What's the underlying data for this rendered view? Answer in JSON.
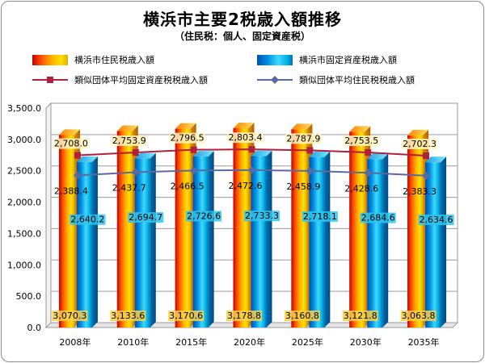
{
  "title": "横浜市主要2税歳入額推移",
  "subtitle": "（住民税：個人、固定資産税）",
  "colors": {
    "bar_resident": "#ff9000",
    "bar_property": "#00b4f0",
    "line_property_similar": "#b0203a",
    "line_resident_similar": "#5a6aa0"
  },
  "chart_data": {
    "type": "bar",
    "categories": [
      "2008年",
      "2010年",
      "2015年",
      "2020年",
      "2025年",
      "2030年",
      "2035年"
    ],
    "ylim": [
      0,
      3500
    ],
    "ytick_labels": [
      "0.0",
      "500.0",
      "1,000.0",
      "1,500.0",
      "2,000.0",
      "2,500.0",
      "3,000.0",
      "3,500.0"
    ],
    "grid": true,
    "legend_position": "top",
    "series": [
      {
        "name": "横浜市住民税歳入額",
        "kind": "bar",
        "values": [
          3070.3,
          3133.6,
          3170.6,
          3178.8,
          3160.8,
          3121.8,
          3063.8
        ],
        "labels": [
          "3,070.3",
          "3,133.6",
          "3,170.6",
          "3,178.8",
          "3,160.8",
          "3,121.8",
          "3,063.8"
        ]
      },
      {
        "name": "横浜市固定資産税歳入額",
        "kind": "bar",
        "values": [
          2640.2,
          2694.7,
          2726.6,
          2733.3,
          2718.1,
          2684.6,
          2634.6
        ],
        "labels": [
          "2,640.2",
          "2,694.7",
          "2,726.6",
          "2,733.3",
          "2,718.1",
          "2,684.6",
          "2,634.6"
        ]
      },
      {
        "name": "類似団体平均固定資産税税歳入額",
        "kind": "line",
        "values": [
          2708.0,
          2753.9,
          2796.5,
          2803.4,
          2787.9,
          2753.5,
          2702.3
        ],
        "labels": [
          "2,708.0",
          "2,753.9",
          "2,796.5",
          "2,803.4",
          "2,787.9",
          "2,753.5",
          "2,702.3"
        ]
      },
      {
        "name": "類似団体平均住民税税歳入額",
        "kind": "line",
        "values": [
          2388.4,
          2437.7,
          2466.5,
          2472.6,
          2458.9,
          2428.6,
          2383.3
        ],
        "labels": [
          "2,388.4",
          "2,437.7",
          "2,466.5",
          "2,472.6",
          "2,458.9",
          "2,428.6",
          "2,383.3"
        ]
      }
    ]
  }
}
